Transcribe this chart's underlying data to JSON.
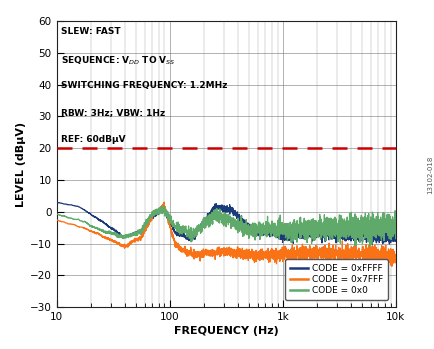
{
  "title": "",
  "xlabel": "FREQUENCY (Hz)",
  "ylabel": "LEVEL (dBμV)",
  "xlim": [
    10,
    10000
  ],
  "ylim": [
    -30,
    60
  ],
  "yticks": [
    -30,
    -20,
    -10,
    0,
    10,
    20,
    30,
    40,
    50,
    60
  ],
  "dashed_line_y": 20,
  "dashed_line_color": "#cc0000",
  "annotation_lines": [
    "SLEW: FAST",
    "SEQUENCE: V$_{DD}$ TO V$_{SS}$",
    "SWITCHING FREQUENCY: 1.2MHz",
    "RBW: 3Hz; VBW: 1Hz",
    "REF: 60dBμV"
  ],
  "legend_entries": [
    "CODE = 0xFFFF",
    "CODE = 0x7FFF",
    "CODE = 0x0"
  ],
  "line_colors": [
    "#1a3a7a",
    "#f97316",
    "#5faa6a"
  ],
  "watermark": "13102-018",
  "background_color": "#ffffff",
  "plot_background": "#ffffff",
  "grid_color": "#777777"
}
